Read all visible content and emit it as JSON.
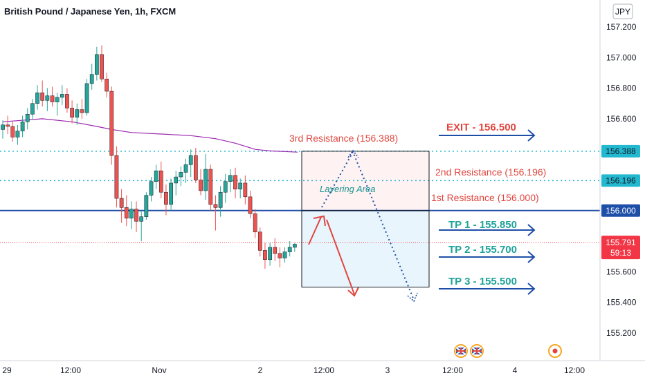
{
  "chart_data": {
    "type": "candlestick",
    "title": "British Pound / Japanese Yen, 1h, FXCM",
    "currency": "JPY",
    "x_tick_labels": [
      "29",
      "12:00",
      "Nov",
      "2",
      "12:00",
      "3",
      "12:00",
      "4",
      "12:00"
    ],
    "y_tick_labels": [
      "157.200",
      "157.000",
      "156.800",
      "156.600",
      "155.600",
      "155.400",
      "155.200"
    ],
    "ylim": [
      155.05,
      157.35
    ],
    "candles": [
      [
        156.53,
        156.59,
        156.47,
        156.56
      ],
      [
        156.56,
        156.62,
        156.5,
        156.55
      ],
      [
        156.55,
        156.58,
        156.45,
        156.48
      ],
      [
        156.48,
        156.56,
        156.43,
        156.52
      ],
      [
        156.52,
        156.62,
        156.48,
        156.58
      ],
      [
        156.58,
        156.67,
        156.53,
        156.63
      ],
      [
        156.63,
        156.73,
        156.6,
        156.7
      ],
      [
        156.7,
        156.82,
        156.66,
        156.77
      ],
      [
        156.77,
        156.85,
        156.68,
        156.72
      ],
      [
        156.72,
        156.8,
        156.65,
        156.75
      ],
      [
        156.75,
        156.81,
        156.68,
        156.71
      ],
      [
        156.71,
        156.77,
        156.62,
        156.74
      ],
      [
        156.74,
        156.82,
        156.69,
        156.76
      ],
      [
        156.76,
        156.8,
        156.64,
        156.67
      ],
      [
        156.67,
        156.72,
        156.57,
        156.61
      ],
      [
        156.61,
        156.7,
        156.56,
        156.66
      ],
      [
        156.66,
        156.73,
        156.6,
        156.64
      ],
      [
        156.64,
        156.86,
        156.62,
        156.83
      ],
      [
        156.83,
        156.96,
        156.79,
        156.89
      ],
      [
        156.89,
        157.07,
        156.85,
        157.02
      ],
      [
        157.02,
        157.08,
        156.84,
        156.86
      ],
      [
        156.86,
        156.9,
        156.74,
        156.78
      ],
      [
        156.78,
        156.81,
        156.3,
        156.36
      ],
      [
        156.36,
        156.42,
        156.02,
        156.08
      ],
      [
        156.08,
        156.14,
        155.92,
        156.02
      ],
      [
        156.02,
        156.1,
        155.9,
        155.95
      ],
      [
        155.95,
        156.06,
        155.88,
        156.01
      ],
      [
        156.01,
        156.06,
        155.86,
        155.93
      ],
      [
        155.93,
        156.0,
        155.8,
        155.96
      ],
      [
        155.96,
        156.12,
        155.94,
        156.1
      ],
      [
        156.1,
        156.22,
        156.06,
        156.19
      ],
      [
        156.19,
        156.3,
        156.14,
        156.26
      ],
      [
        156.26,
        156.32,
        156.08,
        156.12
      ],
      [
        156.12,
        156.17,
        155.97,
        156.04
      ],
      [
        156.04,
        156.21,
        156.0,
        156.18
      ],
      [
        156.18,
        156.26,
        156.1,
        156.22
      ],
      [
        156.22,
        156.29,
        156.16,
        156.25
      ],
      [
        156.25,
        156.34,
        156.18,
        156.3
      ],
      [
        156.3,
        156.4,
        156.22,
        156.36
      ],
      [
        156.36,
        156.41,
        156.18,
        156.2
      ],
      [
        156.2,
        156.27,
        156.1,
        156.13
      ],
      [
        156.13,
        156.37,
        156.07,
        156.27
      ],
      [
        156.27,
        156.3,
        156.0,
        156.04
      ],
      [
        156.04,
        156.1,
        155.87,
        156.02
      ],
      [
        156.02,
        156.16,
        155.96,
        156.12
      ],
      [
        156.12,
        156.24,
        156.05,
        156.19
      ],
      [
        156.19,
        156.27,
        156.12,
        156.23
      ],
      [
        156.23,
        156.28,
        156.08,
        156.14
      ],
      [
        156.14,
        156.21,
        156.08,
        156.18
      ],
      [
        156.18,
        156.23,
        156.04,
        156.09
      ],
      [
        156.09,
        156.13,
        155.95,
        155.98
      ],
      [
        155.98,
        156.01,
        155.82,
        155.86
      ],
      [
        155.86,
        155.89,
        155.7,
        155.74
      ],
      [
        155.74,
        155.79,
        155.62,
        155.68
      ],
      [
        155.68,
        155.79,
        155.64,
        155.76
      ],
      [
        155.76,
        155.82,
        155.67,
        155.72
      ],
      [
        155.72,
        155.76,
        155.63,
        155.69
      ],
      [
        155.69,
        155.76,
        155.66,
        155.73
      ],
      [
        155.73,
        155.8,
        155.7,
        155.76
      ],
      [
        155.76,
        155.79,
        155.73,
        155.78
      ]
    ],
    "moving_average": [
      [
        0,
        156.58
      ],
      [
        8,
        156.6
      ],
      [
        14,
        156.58
      ],
      [
        19,
        156.55
      ],
      [
        22,
        156.53
      ],
      [
        26,
        156.51
      ],
      [
        32,
        156.5
      ],
      [
        38,
        156.49
      ],
      [
        43,
        156.47
      ],
      [
        47,
        156.44
      ],
      [
        51,
        156.4
      ],
      [
        54,
        156.39
      ]
    ],
    "levels": {
      "resistance_3": 156.388,
      "resistance_2": 156.196,
      "resistance_1": 156.0,
      "current_price": 155.791
    },
    "price_labels": {
      "resistance_3": "156.388",
      "resistance_2": "156.196",
      "resistance_1": "156.000",
      "current_price": "155.791",
      "countdown": "59:13"
    },
    "annotations": {
      "resistance_3": "3rd Resistance (156.388)",
      "resistance_2": "2nd Resistance (156.196)",
      "resistance_1": "1st Resistance (156.000)",
      "layering_area": "Layering Area",
      "exit": "EXIT - 156.500",
      "tp1": "TP 1 - 155.850",
      "tp2": "TP 2 - 155.700",
      "tp3": "TP 3 - 155.500"
    },
    "boxes": {
      "layering": [
        156.388,
        156.0
      ],
      "target": [
        156.0,
        155.5
      ]
    },
    "colors": {
      "up": "#26a69a",
      "down": "#ef5350",
      "ma": "#9c27b0",
      "level_dotted": "#22b8cf",
      "support_line": "#1e4fa8",
      "current_price": "#f23645",
      "arrow": "#1e4fa8",
      "annotation_red": "#e0463f",
      "tp_teal": "#1fa39a"
    }
  }
}
